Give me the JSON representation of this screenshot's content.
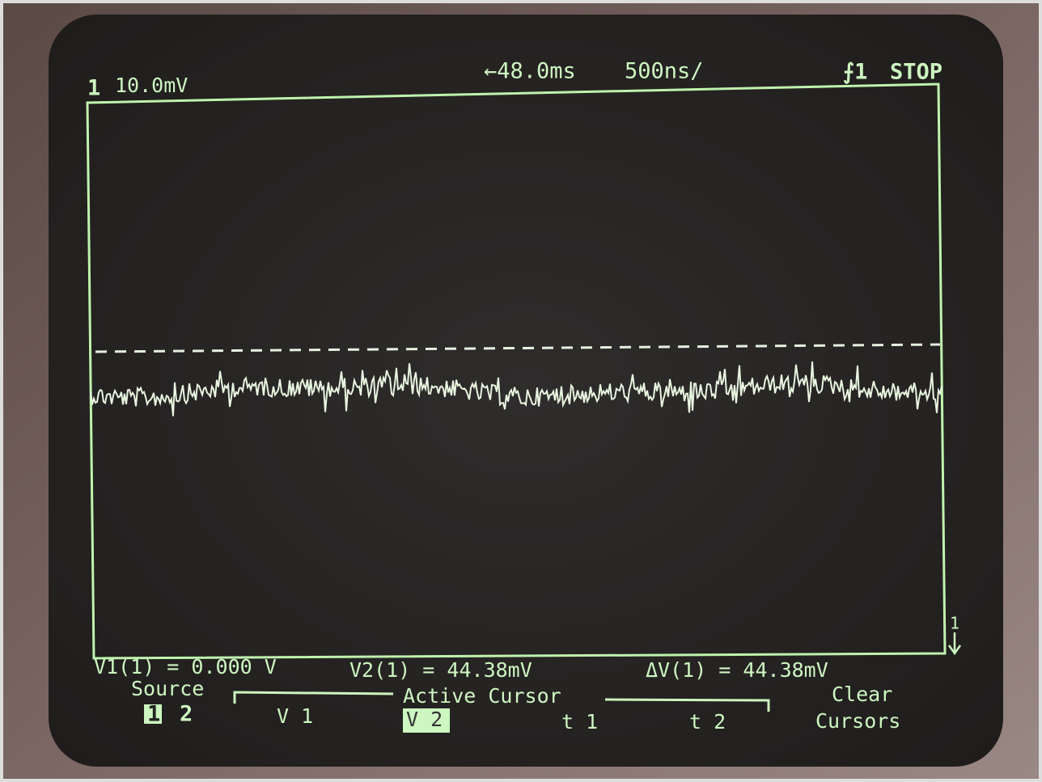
{
  "status": {
    "channel": "1",
    "scale": "10.0mV",
    "delay": "←48.0ms",
    "timebase": "500ns/",
    "trigger": "⨍1",
    "run_state": "STOP",
    "ground_marker": "1"
  },
  "readout": {
    "v1": "V1(1) = 0.000 V",
    "v2": "V2(1) = 44.38mV",
    "dv": "ΔV(1) = 44.38mV"
  },
  "softkeys": {
    "source_label": "Source",
    "source_options": [
      "1",
      "2"
    ],
    "active_cursor_label": "Active Cursor",
    "cursors": [
      "V 1",
      "V 2",
      "t 1",
      "t 2"
    ],
    "clear": [
      "Clear",
      "Cursors"
    ]
  }
}
